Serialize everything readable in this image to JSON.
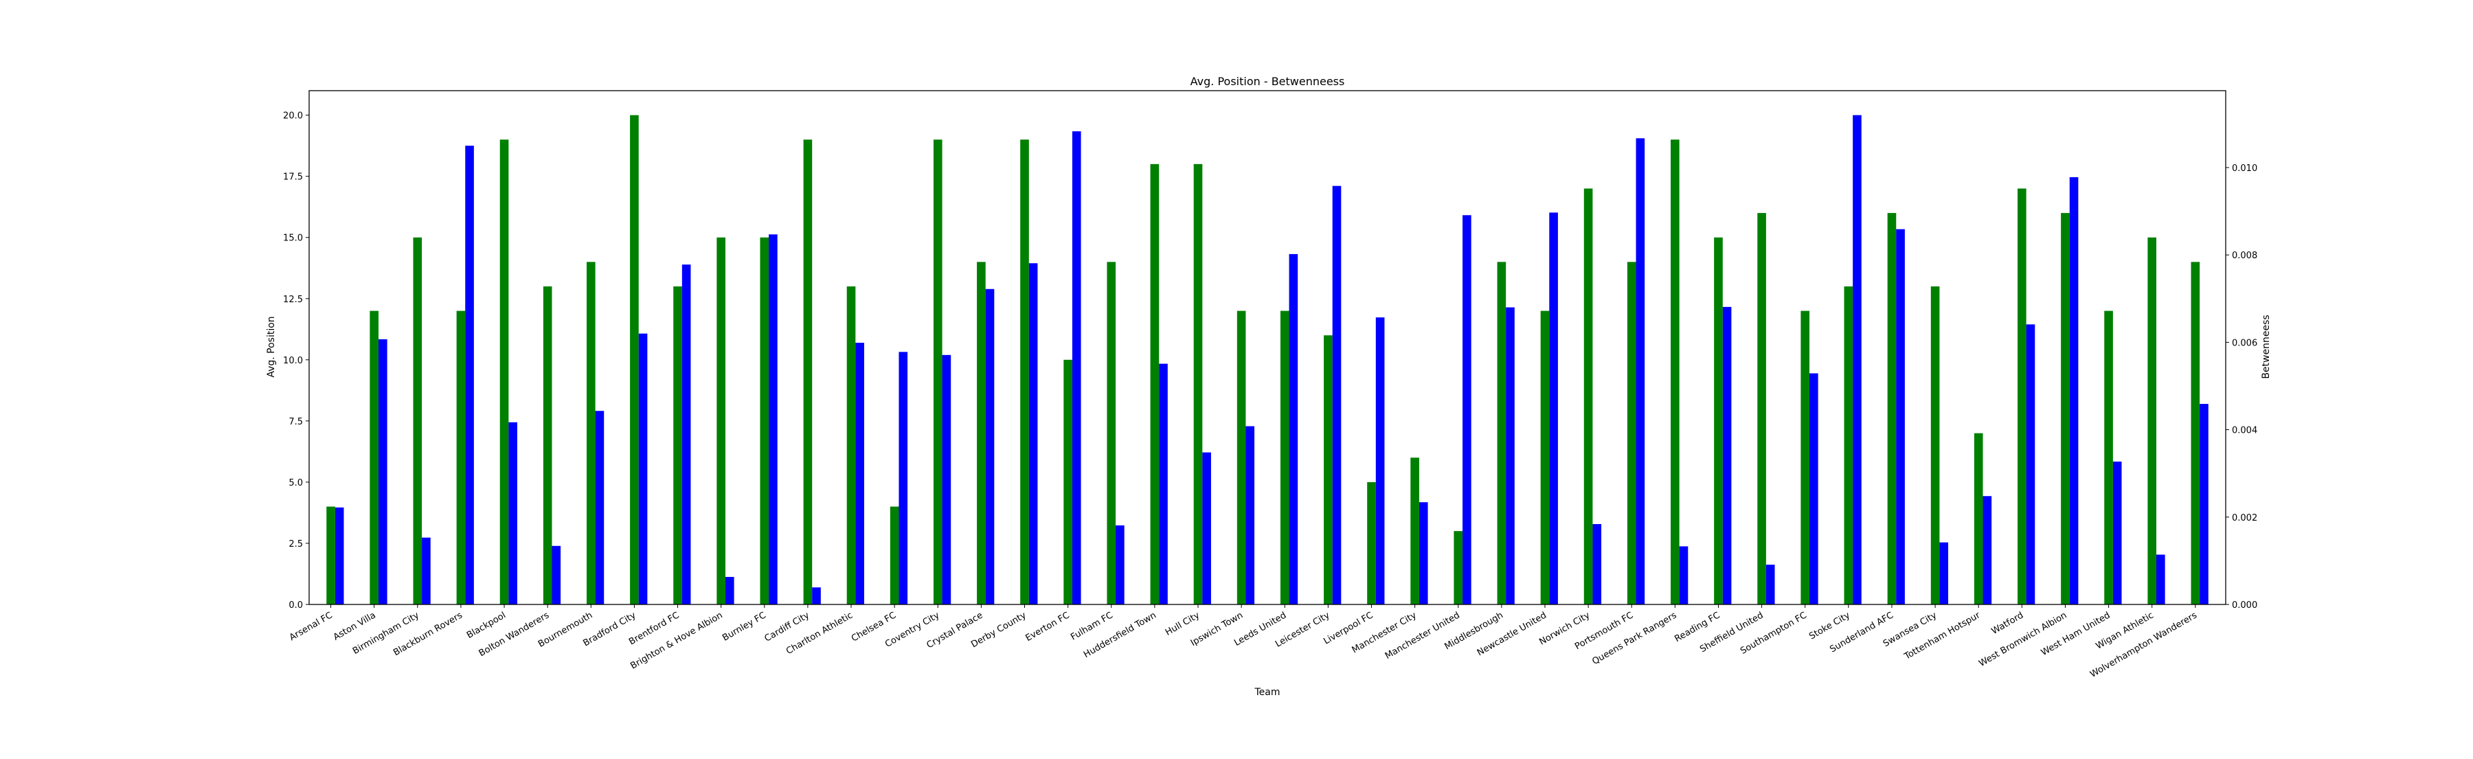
{
  "chart_data": {
    "type": "bar",
    "title": "Avg. Position - Betwenneess",
    "xlabel": "Team",
    "ylabel_left": "Avg. Position",
    "ylabel_right": "Betwenneess",
    "ylim_left": [
      0,
      21
    ],
    "ylim_right": [
      0,
      0.01176
    ],
    "yticks_left": [
      "0.0",
      "2.5",
      "5.0",
      "7.5",
      "10.0",
      "12.5",
      "15.0",
      "17.5",
      "20.0"
    ],
    "yticks_right": [
      "0.000",
      "0.002",
      "0.004",
      "0.006",
      "0.008",
      "0.010"
    ],
    "grid": false,
    "legend": "none",
    "categories": [
      "Arsenal FC",
      "Aston Villa",
      "Birmingham City",
      "Blackburn Rovers",
      "Blackpool",
      "Bolton Wanderers",
      "Bournemouth",
      "Bradford City",
      "Brentford FC",
      "Brighton & Hove Albion",
      "Burnley FC",
      "Cardiff City",
      "Charlton Athletic",
      "Chelsea FC",
      "Coventry City",
      "Crystal Palace",
      "Derby County",
      "Everton FC",
      "Fulham FC",
      "Huddersfield Town",
      "Hull City",
      "Ipswich Town",
      "Leeds United",
      "Leicester City",
      "Liverpool FC",
      "Manchester City",
      "Manchester United",
      "Middlesbrough",
      "Newcastle United",
      "Norwich City",
      "Portsmouth FC",
      "Queens Park Rangers",
      "Reading FC",
      "Sheffield United",
      "Southampton FC",
      "Stoke City",
      "Sunderland AFC",
      "Swansea City",
      "Tottenham Hotspur",
      "Watford",
      "West Bromwich Albion",
      "West Ham United",
      "Wigan Athletic",
      "Wolverhampton Wanderers"
    ],
    "series": [
      {
        "axis": "left",
        "color": "#008000",
        "values": [
          4,
          12,
          15,
          12,
          19,
          13,
          14,
          20,
          13,
          15,
          15,
          19,
          13,
          4,
          19,
          14,
          19,
          10,
          14,
          18,
          18,
          12,
          12,
          11,
          5,
          6,
          3,
          14,
          12,
          17,
          14,
          19,
          15,
          16,
          12,
          13,
          16,
          13,
          7,
          17,
          16,
          12,
          15,
          14
        ]
      },
      {
        "axis": "right",
        "color": "#0000ff",
        "values": [
          0.00222,
          0.00607,
          0.00153,
          0.0105,
          0.00417,
          0.00134,
          0.00443,
          0.0062,
          0.00778,
          0.00063,
          0.00847,
          0.00039,
          0.00599,
          0.00578,
          0.00571,
          0.00722,
          0.00781,
          0.01083,
          0.00181,
          0.00551,
          0.00348,
          0.00408,
          0.00802,
          0.00958,
          0.00657,
          0.00234,
          0.00891,
          0.0068,
          0.00897,
          0.00184,
          0.01067,
          0.00133,
          0.00681,
          0.00091,
          0.00529,
          0.0112,
          0.00859,
          0.00142,
          0.00248,
          0.00641,
          0.00978,
          0.00327,
          0.00114,
          0.00459
        ]
      }
    ]
  }
}
